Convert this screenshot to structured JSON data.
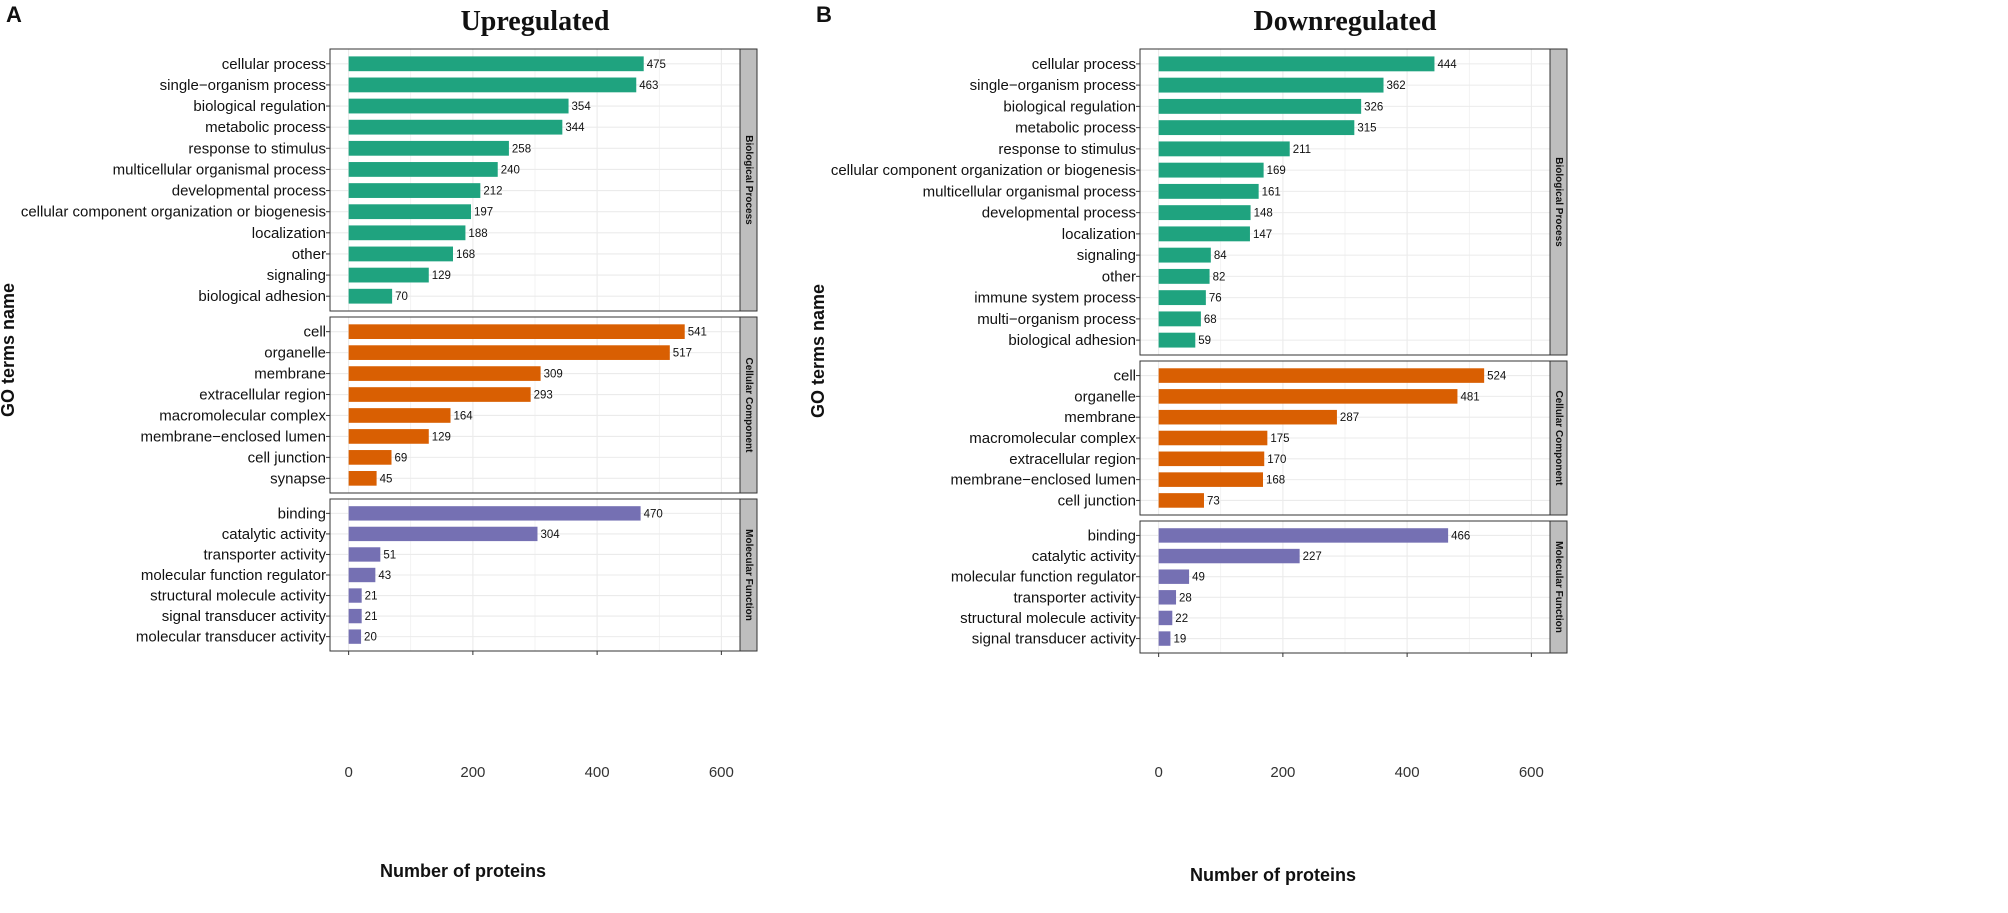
{
  "colors": {
    "biological_process": "#1fa37f",
    "cellular_component": "#d95f02",
    "molecular_function": "#7570b3",
    "strip_fill": "#bebebe",
    "grid": "#ebebeb"
  },
  "chart_data": [
    {
      "type": "bar",
      "orientation": "horizontal",
      "letter": "A",
      "title": "Upregulated",
      "xlabel": "Number of proteins",
      "ylabel": "GO terms name",
      "xlim": [
        -30,
        630
      ],
      "xticks": [
        0,
        200,
        400,
        600
      ],
      "grid": true,
      "facets": [
        {
          "name": "Biological Process",
          "color_key": "biological_process",
          "categories": [
            "cellular process",
            "single−organism process",
            "biological regulation",
            "metabolic process",
            "response to stimulus",
            "multicellular organismal process",
            "developmental process",
            "cellular component organization or biogenesis",
            "localization",
            "other",
            "signaling",
            "biological adhesion"
          ],
          "values": [
            475,
            463,
            354,
            344,
            258,
            240,
            212,
            197,
            188,
            168,
            129,
            70
          ]
        },
        {
          "name": "Cellular Component",
          "color_key": "cellular_component",
          "categories": [
            "cell",
            "organelle",
            "membrane",
            "extracellular region",
            "macromolecular complex",
            "membrane−enclosed lumen",
            "cell junction",
            "synapse"
          ],
          "values": [
            541,
            517,
            309,
            293,
            164,
            129,
            69,
            45
          ]
        },
        {
          "name": "Molecular Function",
          "color_key": "molecular_function",
          "categories": [
            "binding",
            "catalytic activity",
            "transporter activity",
            "molecular function regulator",
            "structural molecule activity",
            "signal transducer activity",
            "molecular transducer activity"
          ],
          "values": [
            470,
            304,
            51,
            43,
            21,
            21,
            20
          ]
        }
      ]
    },
    {
      "type": "bar",
      "orientation": "horizontal",
      "letter": "B",
      "title": "Downregulated",
      "xlabel": "Number of proteins",
      "ylabel": "GO terms name",
      "xlim": [
        -30,
        630
      ],
      "xticks": [
        0,
        200,
        400,
        600
      ],
      "grid": true,
      "facets": [
        {
          "name": "Biological Process",
          "color_key": "biological_process",
          "categories": [
            "cellular process",
            "single−organism process",
            "biological regulation",
            "metabolic process",
            "response to stimulus",
            "cellular component organization or biogenesis",
            "multicellular organismal process",
            "developmental process",
            "localization",
            "signaling",
            "other",
            "immune system process",
            "multi−organism process",
            "biological adhesion"
          ],
          "values": [
            444,
            362,
            326,
            315,
            211,
            169,
            161,
            148,
            147,
            84,
            82,
            76,
            68,
            59
          ]
        },
        {
          "name": "Cellular Component",
          "color_key": "cellular_component",
          "categories": [
            "cell",
            "organelle",
            "membrane",
            "macromolecular complex",
            "extracellular region",
            "membrane−enclosed lumen",
            "cell junction"
          ],
          "values": [
            524,
            481,
            287,
            175,
            170,
            168,
            73
          ]
        },
        {
          "name": "Molecular Function",
          "color_key": "molecular_function",
          "categories": [
            "binding",
            "catalytic activity",
            "molecular function regulator",
            "transporter activity",
            "structural molecule activity",
            "signal transducer activity"
          ],
          "values": [
            466,
            227,
            49,
            28,
            22,
            19
          ]
        }
      ]
    }
  ]
}
